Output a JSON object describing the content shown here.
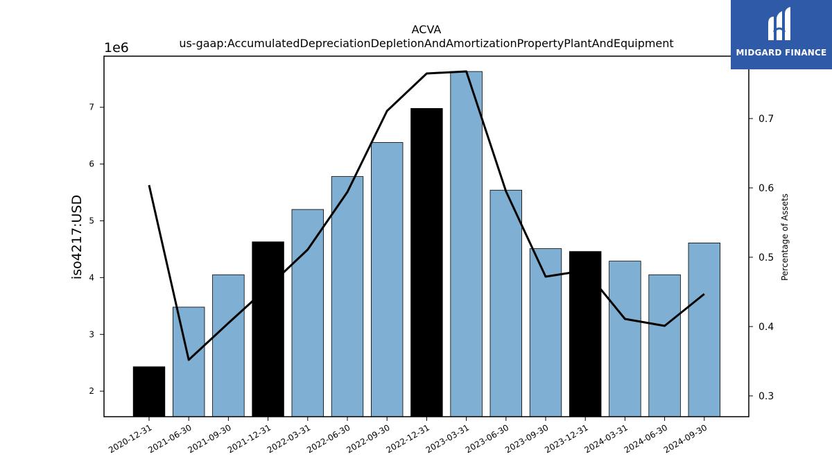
{
  "logo": {
    "text": "MIDGARD FINANCE",
    "bg": "#2f5aa8"
  },
  "chart_data": {
    "type": "bar",
    "title": "ACVA",
    "subtitle": "us-gaap:AccumulatedDepreciationDepletionAndAmortizationPropertyPlantAndEquipment",
    "ylabel": "iso4217:USD",
    "ylabel_right": "Percentage of Assets",
    "y_offset_text": "1e6",
    "ylim": [
      1.55,
      7.9
    ],
    "ylim_right": [
      0.27,
      0.79
    ],
    "yticks": [
      2,
      3,
      4,
      5,
      6,
      7
    ],
    "yticks_right": [
      0.3,
      0.4,
      0.5,
      0.6,
      0.7
    ],
    "categories": [
      "2020-12-31",
      "2021-06-30",
      "2021-09-30",
      "2021-12-31",
      "2022-03-31",
      "2022-06-30",
      "2022-09-30",
      "2022-12-31",
      "2023-03-31",
      "2023-06-30",
      "2023-09-30",
      "2023-12-31",
      "2024-03-31",
      "2024-06-30",
      "2024-09-30"
    ],
    "series": [
      {
        "type": "bar",
        "values": [
          2.43,
          3.48,
          4.05,
          4.63,
          5.2,
          5.78,
          6.38,
          6.98,
          7.63,
          5.54,
          4.51,
          4.46,
          4.29,
          4.05,
          4.61
        ],
        "colors": [
          "#000000",
          "#7fafd3",
          "#7fafd3",
          "#000000",
          "#7fafd3",
          "#7fafd3",
          "#7fafd3",
          "#000000",
          "#7fafd3",
          "#7fafd3",
          "#7fafd3",
          "#000000",
          "#7fafd3",
          "#7fafd3",
          "#7fafd3"
        ]
      },
      {
        "type": "line",
        "axis": "right",
        "color": "#000000",
        "values": [
          0.604,
          0.352,
          0.405,
          0.457,
          0.511,
          0.594,
          0.711,
          0.765,
          0.768,
          0.595,
          0.472,
          0.481,
          0.411,
          0.401,
          0.447
        ]
      }
    ]
  }
}
